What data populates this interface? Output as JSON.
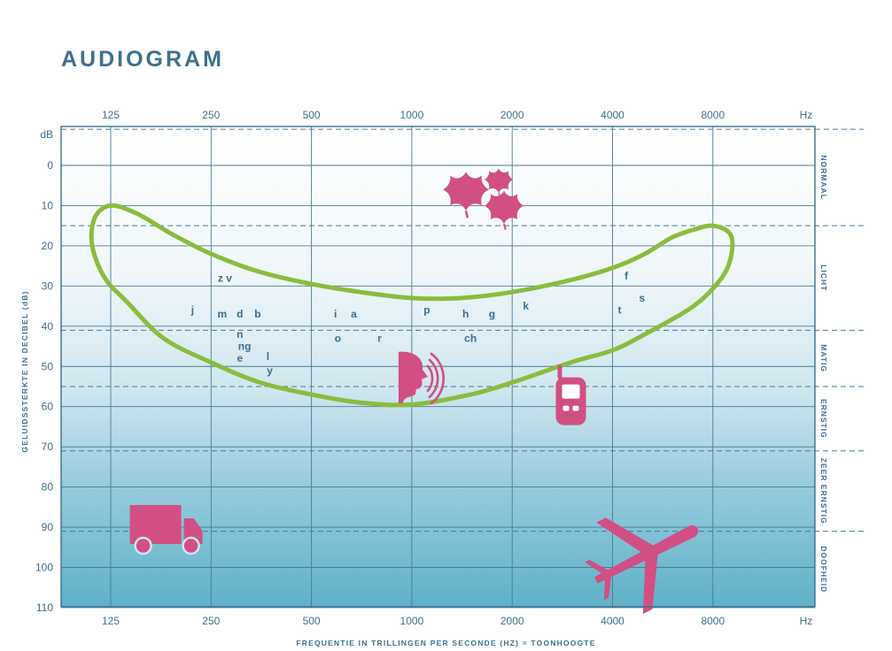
{
  "page": {
    "title": "AUDIOGRAM"
  },
  "chart_data": {
    "type": "audiogram",
    "title": "",
    "xlabel": "FREQUENTIE IN TRILLINGEN PER SECONDE (HZ) = TOONHOOGTE",
    "ylabel": "GELUIDSSTERKTE IN DECIBEL (dB)",
    "x_scale": "log2",
    "x_ticks": [
      125,
      250,
      500,
      1000,
      2000,
      4000,
      8000
    ],
    "x_unit_label": "Hz",
    "y_unit_label": "dB",
    "y_ticks": [
      0,
      10,
      20,
      30,
      40,
      50,
      60,
      70,
      80,
      90,
      100,
      110
    ],
    "ylim": [
      -9,
      110
    ],
    "y_inverted": true,
    "grid": true,
    "hearing_bands": [
      {
        "label": "NORMAAL",
        "from_db": -9,
        "to_db": 15
      },
      {
        "label": "LICHT",
        "from_db": 15,
        "to_db": 41
      },
      {
        "label": "MATIG",
        "from_db": 41,
        "to_db": 55
      },
      {
        "label": "ERNSTIG",
        "from_db": 55,
        "to_db": 71
      },
      {
        "label": "ZEER ERNSTIG",
        "from_db": 71,
        "to_db": 91
      },
      {
        "label": "DOOFHEID",
        "from_db": 91,
        "to_db": 110
      }
    ],
    "speech_banana": {
      "color": "#8bbb3e",
      "points": [
        [
          125,
          10
        ],
        [
          150,
          12
        ],
        [
          190,
          17
        ],
        [
          250,
          22
        ],
        [
          350,
          26.5
        ],
        [
          500,
          29.5
        ],
        [
          700,
          31.5
        ],
        [
          1000,
          33
        ],
        [
          1400,
          33
        ],
        [
          2000,
          31.5
        ],
        [
          3000,
          28.5
        ],
        [
          4000,
          25.5
        ],
        [
          5000,
          22
        ],
        [
          6000,
          18
        ],
        [
          7000,
          16
        ],
        [
          8000,
          15
        ],
        [
          9000,
          17
        ],
        [
          9100,
          22
        ],
        [
          8500,
          28
        ],
        [
          7000,
          35
        ],
        [
          5000,
          42
        ],
        [
          4000,
          46
        ],
        [
          3000,
          49
        ],
        [
          2000,
          54
        ],
        [
          1500,
          57
        ],
        [
          1000,
          59.5
        ],
        [
          700,
          59
        ],
        [
          500,
          57
        ],
        [
          350,
          54
        ],
        [
          250,
          49
        ],
        [
          180,
          43
        ],
        [
          140,
          34
        ],
        [
          120,
          28
        ],
        [
          110,
          20
        ],
        [
          112,
          13
        ]
      ]
    },
    "speech_sounds": [
      {
        "label": "z v",
        "freq": 275,
        "db": 28
      },
      {
        "label": "j",
        "freq": 220,
        "db": 36
      },
      {
        "label": "m",
        "freq": 270,
        "db": 37
      },
      {
        "label": "d",
        "freq": 305,
        "db": 37
      },
      {
        "label": "b",
        "freq": 345,
        "db": 37
      },
      {
        "label": "n",
        "freq": 305,
        "db": 42
      },
      {
        "label": "ng",
        "freq": 315,
        "db": 45
      },
      {
        "label": "e",
        "freq": 305,
        "db": 48
      },
      {
        "label": "l",
        "freq": 370,
        "db": 47.5
      },
      {
        "label": "y",
        "freq": 375,
        "db": 51
      },
      {
        "label": "i",
        "freq": 590,
        "db": 37
      },
      {
        "label": "a",
        "freq": 670,
        "db": 37
      },
      {
        "label": "o",
        "freq": 600,
        "db": 43
      },
      {
        "label": "r",
        "freq": 800,
        "db": 43
      },
      {
        "label": "p",
        "freq": 1110,
        "db": 36
      },
      {
        "label": "h",
        "freq": 1450,
        "db": 37
      },
      {
        "label": "ch",
        "freq": 1500,
        "db": 43
      },
      {
        "label": "g",
        "freq": 1740,
        "db": 37
      },
      {
        "label": "k",
        "freq": 2200,
        "db": 35
      },
      {
        "label": "f",
        "freq": 4400,
        "db": 27.5
      },
      {
        "label": "s",
        "freq": 4900,
        "db": 33
      },
      {
        "label": "t",
        "freq": 4200,
        "db": 36
      }
    ],
    "sound_icons": [
      {
        "name": "leaves-icon",
        "freq": 1800,
        "db": 6
      },
      {
        "name": "speaking-person-icon",
        "freq": 1000,
        "db": 53
      },
      {
        "name": "mobile-phone-icon",
        "freq": 3000,
        "db": 58
      },
      {
        "name": "truck-icon",
        "freq": 180,
        "db": 90
      },
      {
        "name": "airplane-icon",
        "freq": 5000,
        "db": 97
      }
    ],
    "colors": {
      "axis": "#3f6f8c",
      "grid": "#4a7a96",
      "banana": "#8bbb3e",
      "icons": "#d14f83",
      "background_top": "#ffffff",
      "background_bottom": "#5fb1c9"
    }
  }
}
